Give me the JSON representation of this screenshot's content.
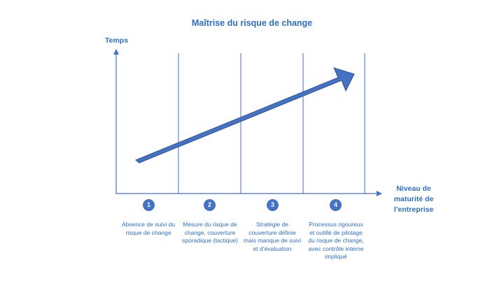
{
  "title": "Maîtrise du risque de change",
  "y_axis_label": "Temps",
  "x_axis_label": "Niveau de maturité de l’entreprise",
  "stages": [
    {
      "number": "1",
      "description": "Absence de suivi du risque de change"
    },
    {
      "number": "2",
      "description": "Mesure du risque de change, couverture sporadique (tactique)"
    },
    {
      "number": "3",
      "description": "Stratégie de couverture définie mais manque de suivi et d’évaluation"
    },
    {
      "number": "4",
      "description": "Processus rigoureux et outillé de pilotage du risque de change, avec contrôle interne impliqué"
    }
  ],
  "colors": {
    "accent": "#2d6fc0",
    "arrow": "#4472c4",
    "arrow_border": "#2f528f"
  }
}
